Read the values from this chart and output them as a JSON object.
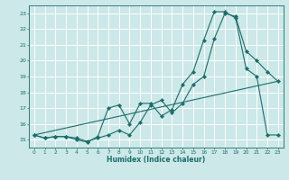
{
  "xlabel": "Humidex (Indice chaleur)",
  "bg_color": "#cce8e8",
  "grid_color": "#ffffff",
  "line_color": "#1a6e6a",
  "xlim": [
    -0.5,
    23.5
  ],
  "ylim": [
    14.5,
    23.5
  ],
  "xticks": [
    0,
    1,
    2,
    3,
    4,
    5,
    6,
    7,
    8,
    9,
    10,
    11,
    12,
    13,
    14,
    15,
    16,
    17,
    18,
    19,
    20,
    21,
    22,
    23
  ],
  "yticks": [
    15,
    16,
    17,
    18,
    19,
    20,
    21,
    22,
    23
  ],
  "line1_x": [
    0,
    1,
    2,
    3,
    4,
    5,
    6,
    7,
    8,
    9,
    10,
    11,
    12,
    13,
    14,
    15,
    16,
    17,
    18,
    19,
    20,
    21,
    22,
    23
  ],
  "line1_y": [
    15.3,
    15.1,
    15.2,
    15.2,
    15.1,
    14.9,
    15.1,
    15.3,
    15.6,
    15.3,
    16.1,
    17.2,
    17.5,
    16.7,
    17.3,
    18.5,
    19.0,
    21.4,
    23.0,
    22.8,
    20.6,
    20.0,
    19.3,
    18.7
  ],
  "line2_x": [
    0,
    1,
    2,
    3,
    4,
    5,
    6,
    7,
    8,
    9,
    10,
    11,
    12,
    13,
    14,
    15,
    16,
    17,
    18,
    19,
    20,
    21,
    22,
    23
  ],
  "line2_y": [
    15.3,
    15.1,
    15.2,
    15.2,
    15.0,
    14.85,
    15.2,
    17.0,
    17.2,
    16.0,
    17.3,
    17.3,
    16.5,
    16.9,
    18.5,
    19.3,
    21.3,
    23.1,
    23.1,
    22.7,
    19.5,
    19.0,
    15.3,
    15.3
  ],
  "line3_x": [
    0,
    23
  ],
  "line3_y": [
    15.3,
    18.7
  ]
}
